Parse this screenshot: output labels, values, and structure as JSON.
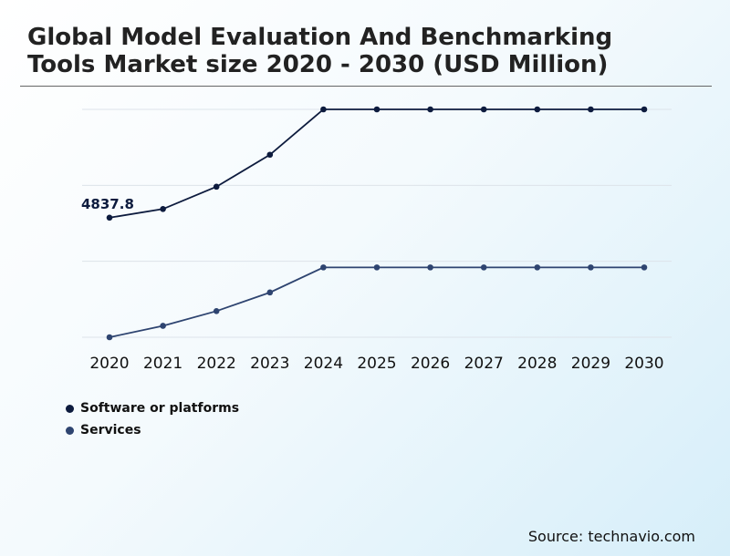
{
  "header": {
    "title": "Global Model Evaluation And Benchmarking Tools Market size 2020 - 2030 (USD Million)"
  },
  "footer": {
    "source": "Source: technavio.com"
  },
  "chart_data": {
    "type": "line",
    "title": "Global Model Evaluation And Benchmarking Tools Market size 2020 - 2030 (USD Million)",
    "xlabel": "",
    "ylabel": "",
    "x": [
      "2020",
      "2021",
      "2022",
      "2023",
      "2024",
      "2025",
      "2026",
      "2027",
      "2028",
      "2029",
      "2030"
    ],
    "series": [
      {
        "name": "Software or platforms",
        "color": "#0d1b3e",
        "values": [
          4837.8,
          5150,
          5950,
          7100,
          8730,
          8730,
          8730,
          8730,
          8730,
          8730,
          8730
        ]
      },
      {
        "name": "Services",
        "color": "#2e4470",
        "values": [
          540,
          950,
          1480,
          2150,
          3050,
          3050,
          3050,
          3050,
          3050,
          3050,
          3050
        ]
      }
    ],
    "data_labels": [
      {
        "series": 0,
        "index": 0,
        "text": "4837.8"
      }
    ],
    "ylim": [
      540,
      8730
    ],
    "grid": true,
    "legend": "bottom-left"
  }
}
